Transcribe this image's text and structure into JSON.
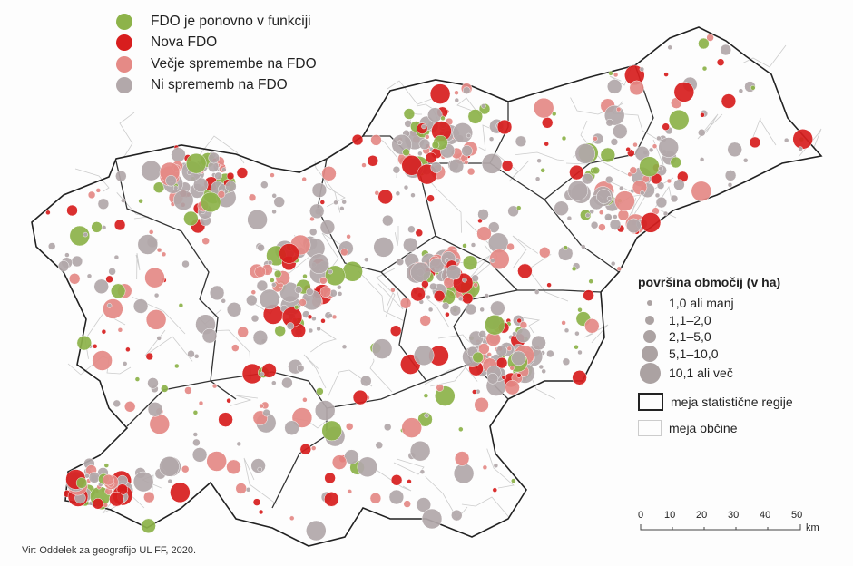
{
  "legend_categories": [
    {
      "label": "FDO je ponovno v funkciji",
      "color": "#8db34a"
    },
    {
      "label": "Nova FDO",
      "color": "#d81e1e"
    },
    {
      "label": "Večje spremembe na FDO",
      "color": "#e58a86"
    },
    {
      "label": "Ni sprememb na FDO",
      "color": "#b2a8aa"
    }
  ],
  "legend_size": {
    "title": "površina območij (v ha)",
    "classes": [
      "1,0 ali manj",
      "1,1–2,0",
      "2,1–5,0",
      "5,1–10,0",
      "10,1 ali več"
    ]
  },
  "legend_boundaries": {
    "region": "meja statistične regije",
    "municipality": "meja občine"
  },
  "scale_bar": {
    "ticks": [
      "0",
      "10",
      "20",
      "30",
      "40",
      "50"
    ],
    "unit": "km"
  },
  "source": "Vir: Oddelek za geografijo UL FF, 2020."
}
